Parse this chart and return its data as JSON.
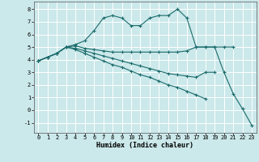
{
  "title": "",
  "xlabel": "Humidex (Indice chaleur)",
  "background_color": "#cbe8ea",
  "grid_color": "#ffffff",
  "line_color": "#1a6b6b",
  "xlim": [
    -0.5,
    23.5
  ],
  "ylim": [
    -1.8,
    8.6
  ],
  "xticks": [
    0,
    1,
    2,
    3,
    4,
    5,
    6,
    7,
    8,
    9,
    10,
    11,
    12,
    13,
    14,
    15,
    16,
    17,
    18,
    19,
    20,
    21,
    22,
    23
  ],
  "yticks": [
    -1,
    0,
    1,
    2,
    3,
    4,
    5,
    6,
    7,
    8
  ],
  "series": [
    [
      3.9,
      4.2,
      4.5,
      5.0,
      5.2,
      5.5,
      6.3,
      7.3,
      7.5,
      7.3,
      6.7,
      6.7,
      7.3,
      7.5,
      7.5,
      8.0,
      7.3,
      5.0,
      5.0,
      5.0,
      3.0,
      1.3,
      0.1,
      -1.2
    ],
    [
      3.9,
      4.2,
      4.5,
      5.0,
      5.1,
      4.9,
      4.8,
      4.7,
      4.6,
      4.6,
      4.6,
      4.6,
      4.6,
      4.6,
      4.6,
      4.6,
      4.7,
      5.0,
      5.0,
      5.0,
      5.0,
      5.0,
      null,
      null
    ],
    [
      3.9,
      4.2,
      4.5,
      5.0,
      4.9,
      4.7,
      4.5,
      4.3,
      4.1,
      3.9,
      3.7,
      3.5,
      3.3,
      3.1,
      2.9,
      2.8,
      2.7,
      2.6,
      3.0,
      3.0,
      null,
      null,
      null,
      null
    ],
    [
      3.9,
      4.2,
      4.5,
      5.0,
      4.8,
      4.5,
      4.2,
      3.9,
      3.6,
      3.4,
      3.1,
      2.8,
      2.6,
      2.3,
      2.0,
      1.8,
      1.5,
      1.2,
      0.9,
      null,
      null,
      null,
      null,
      null
    ]
  ]
}
